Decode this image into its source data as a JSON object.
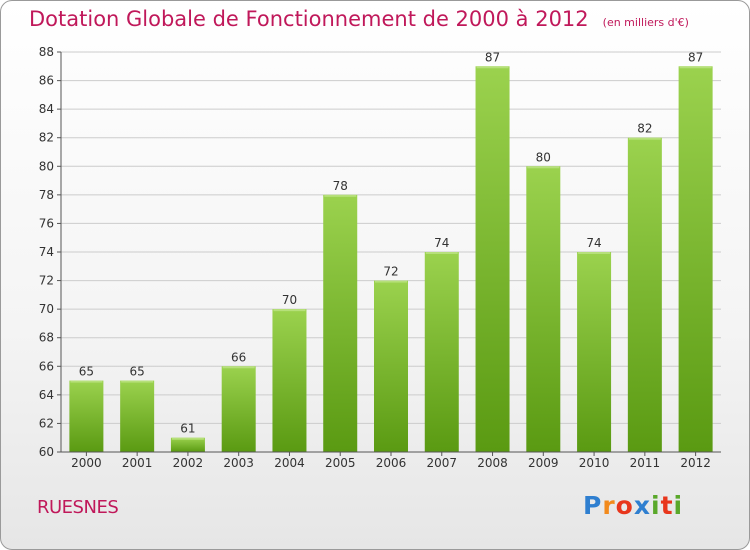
{
  "title": "Dotation Globale de Fonctionnement de 2000 à 2012",
  "unit_note": "(en milliers d'€)",
  "commune": "RUESNES",
  "logo": {
    "text": "Proxiti",
    "letter_colors": [
      "#2f7fd0",
      "#f28a1c",
      "#e8361c",
      "#2f7fd0",
      "#5aa82a",
      "#e8361c",
      "#5aa82a"
    ]
  },
  "colors": {
    "title": "#c0185a",
    "bar_top": "#9bd24e",
    "bar_bottom": "#5a9a12",
    "grid": "#cccccc",
    "axis": "#555555"
  },
  "chart_data": {
    "type": "bar",
    "categories": [
      "2000",
      "2001",
      "2002",
      "2003",
      "2004",
      "2005",
      "2006",
      "2007",
      "2008",
      "2009",
      "2010",
      "2011",
      "2012"
    ],
    "values": [
      65,
      65,
      61,
      66,
      70,
      78,
      72,
      74,
      87,
      80,
      74,
      82,
      87
    ],
    "value_labels": [
      "65",
      "65",
      "61",
      "66",
      "70",
      "78",
      "72",
      "74",
      "87",
      "80",
      "74",
      "82",
      "87"
    ],
    "ylim": [
      60,
      88
    ],
    "yticks": [
      60,
      62,
      64,
      66,
      68,
      70,
      72,
      74,
      76,
      78,
      80,
      82,
      84,
      86,
      88
    ],
    "grid": true,
    "xlabel": "",
    "ylabel": ""
  }
}
